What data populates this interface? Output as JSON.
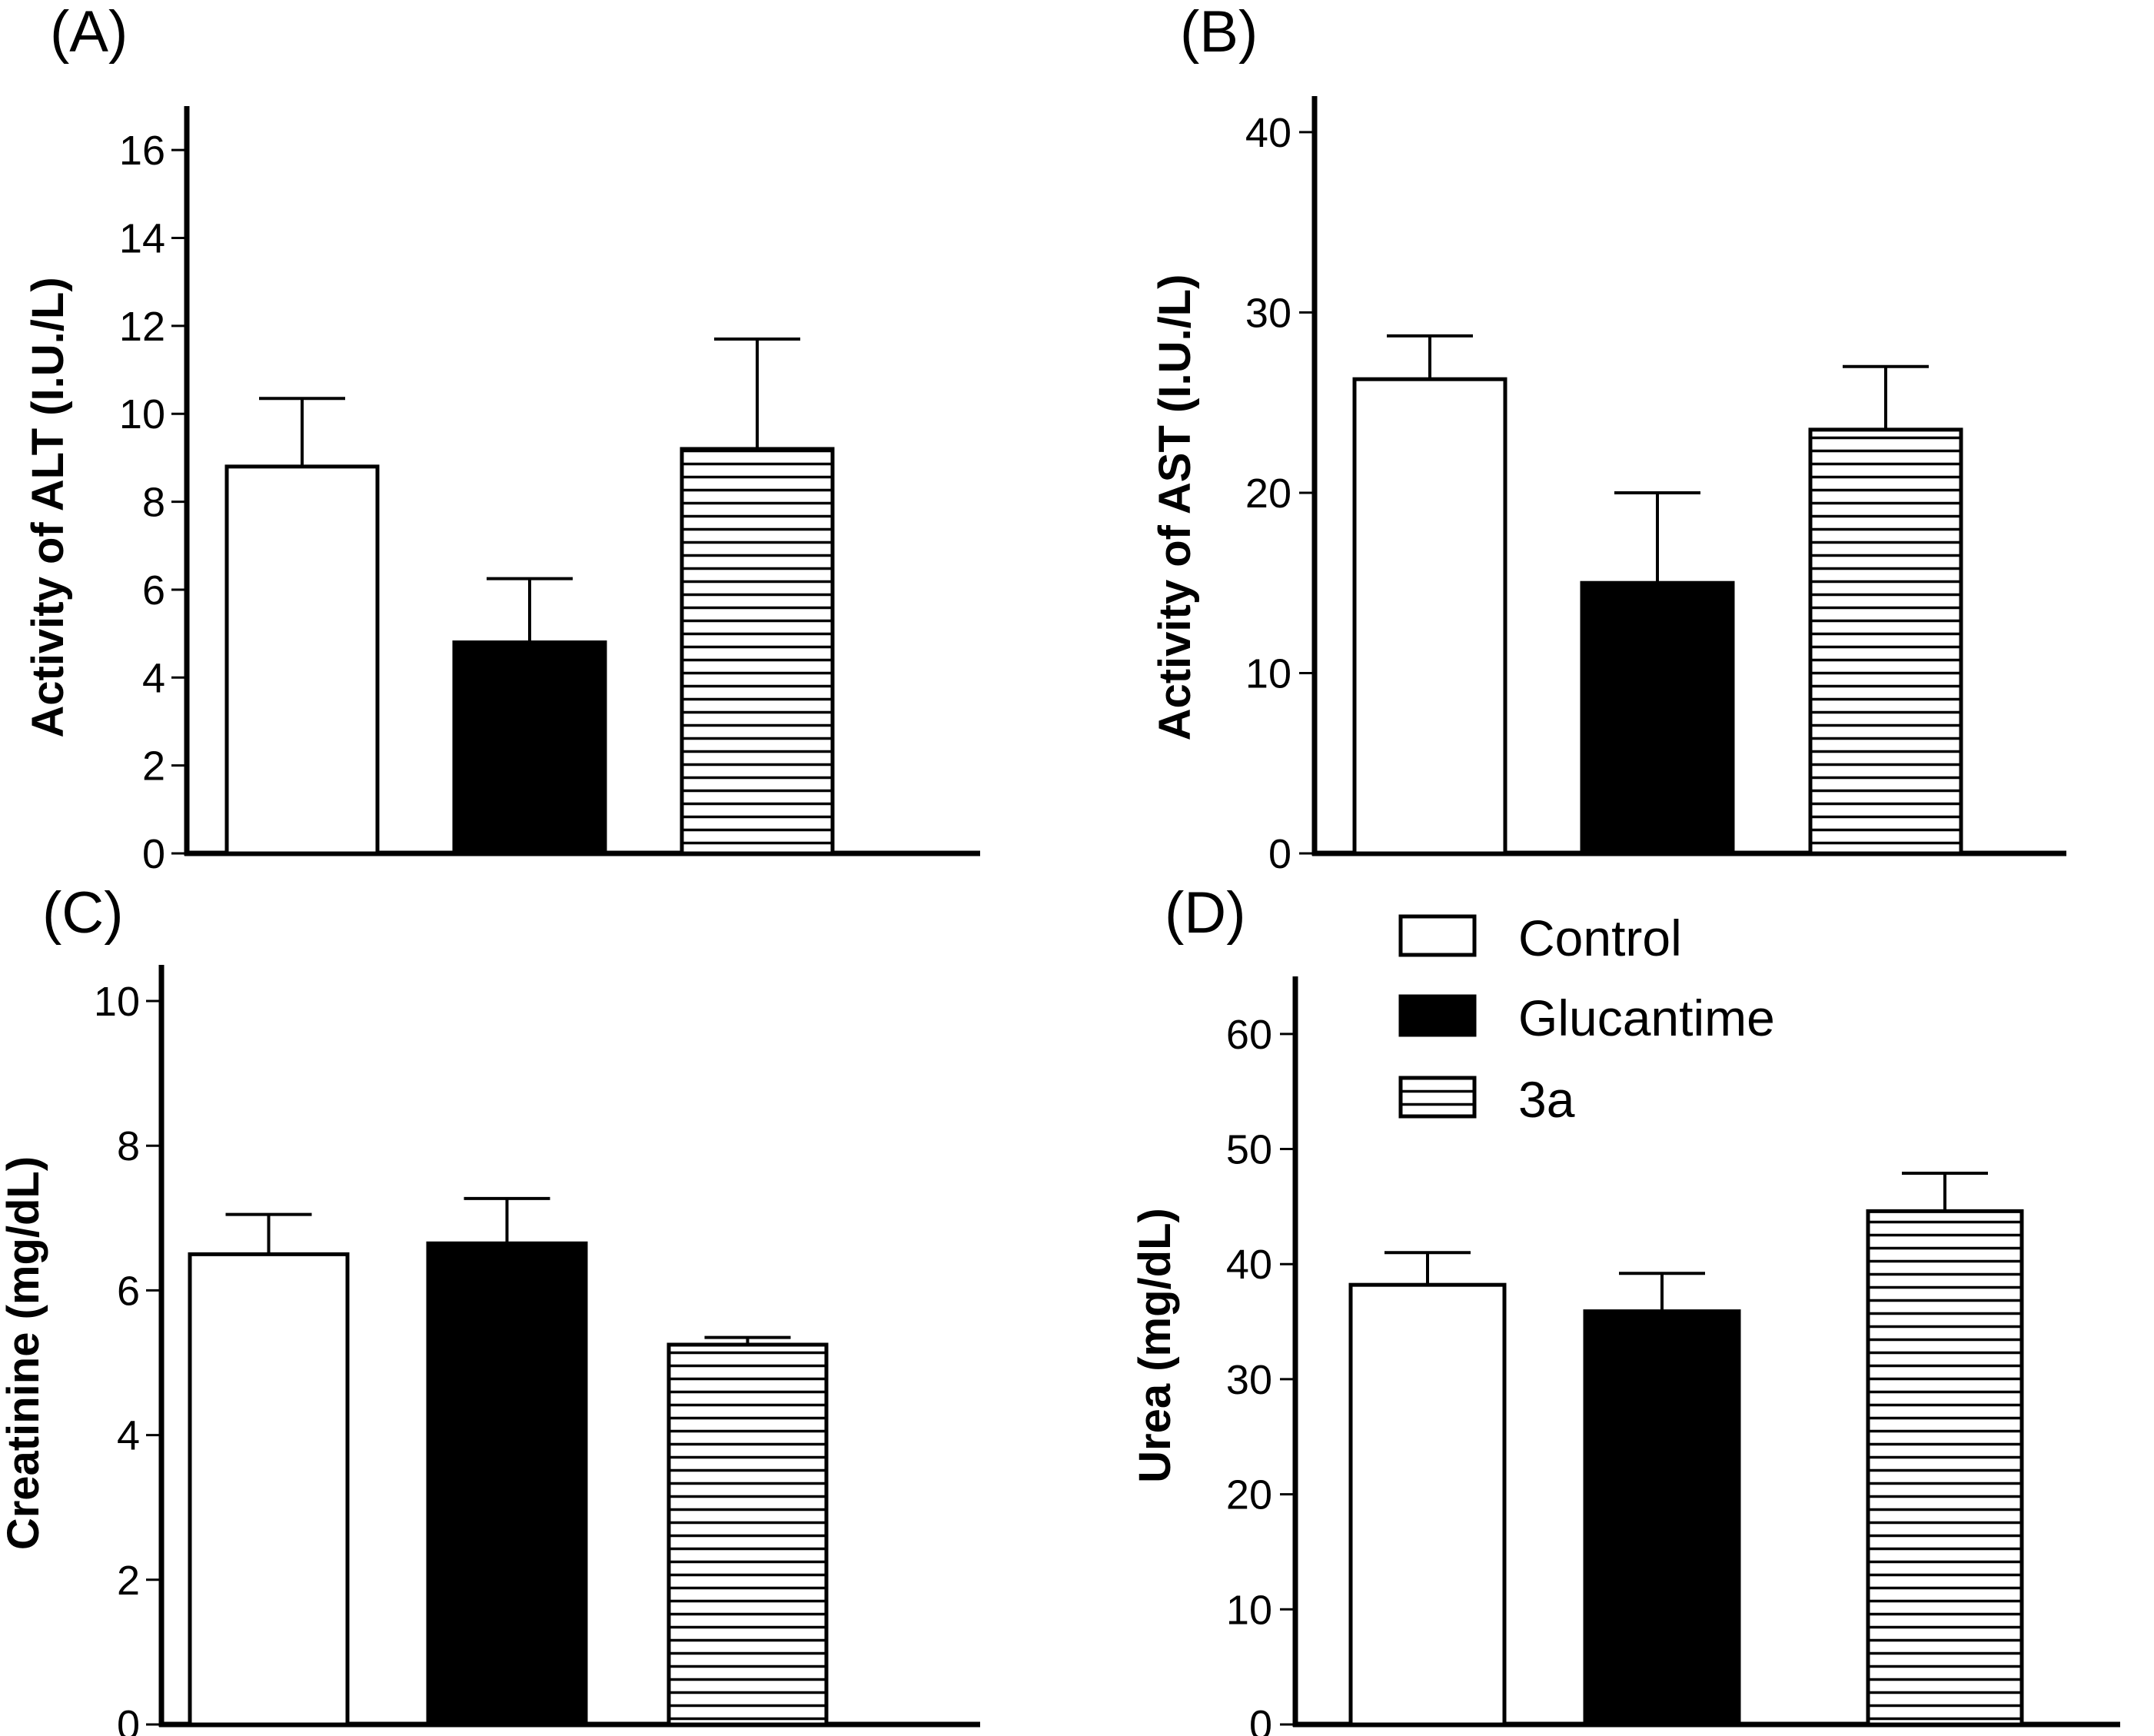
{
  "colors": {
    "control": "#ffffff",
    "glucantime": "#000000",
    "stroke": "#000000"
  },
  "legend": {
    "items": [
      {
        "label": "Control",
        "fill": "white"
      },
      {
        "label": "Glucantime",
        "fill": "black"
      },
      {
        "label": "3a",
        "fill": "hatch"
      }
    ]
  },
  "chart_data": [
    {
      "type": "bar",
      "panel": "(A)",
      "ylabel": "Activity of ALT (I.U./L)",
      "xlabel": "",
      "categories": [
        "Control",
        "Glucantime",
        "3a"
      ],
      "values": [
        8.8,
        4.8,
        9.2
      ],
      "errors": [
        1.55,
        1.45,
        2.5
      ],
      "ylim": [
        0,
        17
      ],
      "yticks": [
        0,
        2,
        4,
        6,
        8,
        10,
        12,
        14,
        16
      ]
    },
    {
      "type": "bar",
      "panel": "(B)",
      "ylabel": "Activity of AST (I.U./L)",
      "xlabel": "",
      "categories": [
        "Control",
        "Glucantime",
        "3a"
      ],
      "values": [
        26.3,
        15.0,
        23.5
      ],
      "errors": [
        2.4,
        5.0,
        3.5
      ],
      "ylim": [
        0,
        42
      ],
      "yticks": [
        0,
        10,
        20,
        30,
        40
      ]
    },
    {
      "type": "bar",
      "panel": "(C)",
      "ylabel": "Creatinine (mg/dL)",
      "xlabel": "",
      "categories": [
        "Control",
        "Glucantime",
        "3a"
      ],
      "values": [
        6.5,
        6.65,
        5.25
      ],
      "errors": [
        0.55,
        0.62,
        0.1
      ],
      "ylim": [
        0,
        10.5
      ],
      "yticks": [
        0,
        2,
        4,
        6,
        8,
        10
      ]
    },
    {
      "type": "bar",
      "panel": "(D)",
      "ylabel": "Urea (mg/dL)",
      "xlabel": "",
      "categories": [
        "Control",
        "Glucantime",
        "3a"
      ],
      "values": [
        38.2,
        35.9,
        44.6
      ],
      "errors": [
        2.8,
        3.3,
        3.3
      ],
      "ylim": [
        0,
        65
      ],
      "yticks": [
        0,
        10,
        20,
        30,
        40,
        50,
        60
      ]
    }
  ]
}
